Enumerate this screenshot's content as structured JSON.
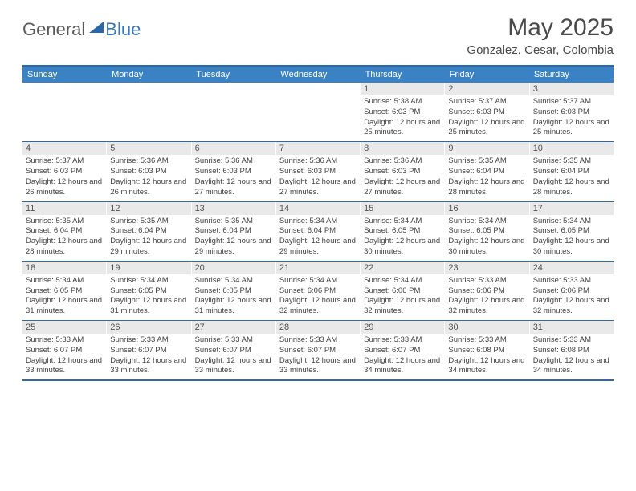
{
  "brand": {
    "text1": "General",
    "text2": "Blue"
  },
  "title": {
    "month": "May 2025",
    "location": "Gonzalez, Cesar, Colombia"
  },
  "colors": {
    "header_bg": "#3a82c4",
    "header_text": "#ffffff",
    "rule": "#2f6aa8",
    "daynum_bg": "#e9e9e9",
    "daynum_text": "#555555",
    "body_text": "#444444",
    "brand_gray": "#5a5a5a",
    "brand_blue": "#3a79b7"
  },
  "weekdays": [
    "Sunday",
    "Monday",
    "Tuesday",
    "Wednesday",
    "Thursday",
    "Friday",
    "Saturday"
  ],
  "weeks": [
    [
      {
        "n": "",
        "empty": true
      },
      {
        "n": "",
        "empty": true
      },
      {
        "n": "",
        "empty": true
      },
      {
        "n": "",
        "empty": true
      },
      {
        "n": "1",
        "sunrise": "5:38 AM",
        "sunset": "6:03 PM",
        "daylight": "12 hours and 25 minutes."
      },
      {
        "n": "2",
        "sunrise": "5:37 AM",
        "sunset": "6:03 PM",
        "daylight": "12 hours and 25 minutes."
      },
      {
        "n": "3",
        "sunrise": "5:37 AM",
        "sunset": "6:03 PM",
        "daylight": "12 hours and 25 minutes."
      }
    ],
    [
      {
        "n": "4",
        "sunrise": "5:37 AM",
        "sunset": "6:03 PM",
        "daylight": "12 hours and 26 minutes."
      },
      {
        "n": "5",
        "sunrise": "5:36 AM",
        "sunset": "6:03 PM",
        "daylight": "12 hours and 26 minutes."
      },
      {
        "n": "6",
        "sunrise": "5:36 AM",
        "sunset": "6:03 PM",
        "daylight": "12 hours and 27 minutes."
      },
      {
        "n": "7",
        "sunrise": "5:36 AM",
        "sunset": "6:03 PM",
        "daylight": "12 hours and 27 minutes."
      },
      {
        "n": "8",
        "sunrise": "5:36 AM",
        "sunset": "6:03 PM",
        "daylight": "12 hours and 27 minutes."
      },
      {
        "n": "9",
        "sunrise": "5:35 AM",
        "sunset": "6:04 PM",
        "daylight": "12 hours and 28 minutes."
      },
      {
        "n": "10",
        "sunrise": "5:35 AM",
        "sunset": "6:04 PM",
        "daylight": "12 hours and 28 minutes."
      }
    ],
    [
      {
        "n": "11",
        "sunrise": "5:35 AM",
        "sunset": "6:04 PM",
        "daylight": "12 hours and 28 minutes."
      },
      {
        "n": "12",
        "sunrise": "5:35 AM",
        "sunset": "6:04 PM",
        "daylight": "12 hours and 29 minutes."
      },
      {
        "n": "13",
        "sunrise": "5:35 AM",
        "sunset": "6:04 PM",
        "daylight": "12 hours and 29 minutes."
      },
      {
        "n": "14",
        "sunrise": "5:34 AM",
        "sunset": "6:04 PM",
        "daylight": "12 hours and 29 minutes."
      },
      {
        "n": "15",
        "sunrise": "5:34 AM",
        "sunset": "6:05 PM",
        "daylight": "12 hours and 30 minutes."
      },
      {
        "n": "16",
        "sunrise": "5:34 AM",
        "sunset": "6:05 PM",
        "daylight": "12 hours and 30 minutes."
      },
      {
        "n": "17",
        "sunrise": "5:34 AM",
        "sunset": "6:05 PM",
        "daylight": "12 hours and 30 minutes."
      }
    ],
    [
      {
        "n": "18",
        "sunrise": "5:34 AM",
        "sunset": "6:05 PM",
        "daylight": "12 hours and 31 minutes."
      },
      {
        "n": "19",
        "sunrise": "5:34 AM",
        "sunset": "6:05 PM",
        "daylight": "12 hours and 31 minutes."
      },
      {
        "n": "20",
        "sunrise": "5:34 AM",
        "sunset": "6:05 PM",
        "daylight": "12 hours and 31 minutes."
      },
      {
        "n": "21",
        "sunrise": "5:34 AM",
        "sunset": "6:06 PM",
        "daylight": "12 hours and 32 minutes."
      },
      {
        "n": "22",
        "sunrise": "5:34 AM",
        "sunset": "6:06 PM",
        "daylight": "12 hours and 32 minutes."
      },
      {
        "n": "23",
        "sunrise": "5:33 AM",
        "sunset": "6:06 PM",
        "daylight": "12 hours and 32 minutes."
      },
      {
        "n": "24",
        "sunrise": "5:33 AM",
        "sunset": "6:06 PM",
        "daylight": "12 hours and 32 minutes."
      }
    ],
    [
      {
        "n": "25",
        "sunrise": "5:33 AM",
        "sunset": "6:07 PM",
        "daylight": "12 hours and 33 minutes."
      },
      {
        "n": "26",
        "sunrise": "5:33 AM",
        "sunset": "6:07 PM",
        "daylight": "12 hours and 33 minutes."
      },
      {
        "n": "27",
        "sunrise": "5:33 AM",
        "sunset": "6:07 PM",
        "daylight": "12 hours and 33 minutes."
      },
      {
        "n": "28",
        "sunrise": "5:33 AM",
        "sunset": "6:07 PM",
        "daylight": "12 hours and 33 minutes."
      },
      {
        "n": "29",
        "sunrise": "5:33 AM",
        "sunset": "6:07 PM",
        "daylight": "12 hours and 34 minutes."
      },
      {
        "n": "30",
        "sunrise": "5:33 AM",
        "sunset": "6:08 PM",
        "daylight": "12 hours and 34 minutes."
      },
      {
        "n": "31",
        "sunrise": "5:33 AM",
        "sunset": "6:08 PM",
        "daylight": "12 hours and 34 minutes."
      }
    ]
  ],
  "labels": {
    "sunrise": "Sunrise:",
    "sunset": "Sunset:",
    "daylight": "Daylight:"
  }
}
